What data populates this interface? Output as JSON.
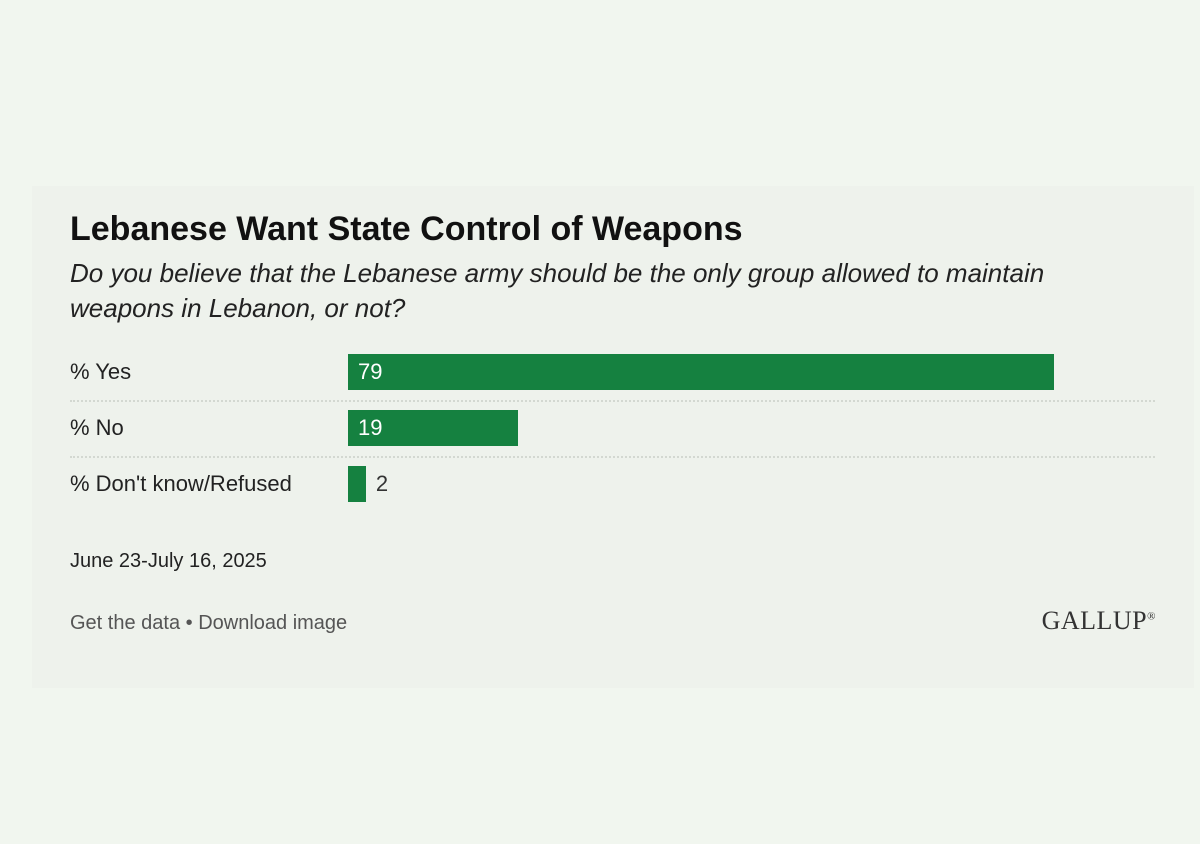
{
  "chart_data": {
    "type": "bar",
    "orientation": "horizontal",
    "title": "Lebanese Want State Control of Weapons",
    "subtitle": "Do you believe that the Lebanese army should be the only group allowed to maintain weapons in Lebanon, or not?",
    "categories": [
      "% Yes",
      "% No",
      "% Don't know/Refused"
    ],
    "values": [
      79,
      19,
      2
    ],
    "value_labels": [
      "79",
      "19",
      "2"
    ],
    "xlim": [
      0,
      100
    ],
    "xlabel": "",
    "ylabel": "",
    "grid": false,
    "legend": "none"
  },
  "date_range": "June 23-July 16, 2025",
  "footer": {
    "get_data": "Get the data",
    "separator": " • ",
    "download_image": "Download image",
    "logo": "GALLUP"
  },
  "colors": {
    "bar": "#158140",
    "background": "#eef2ec",
    "page": "#f1f6ef"
  }
}
